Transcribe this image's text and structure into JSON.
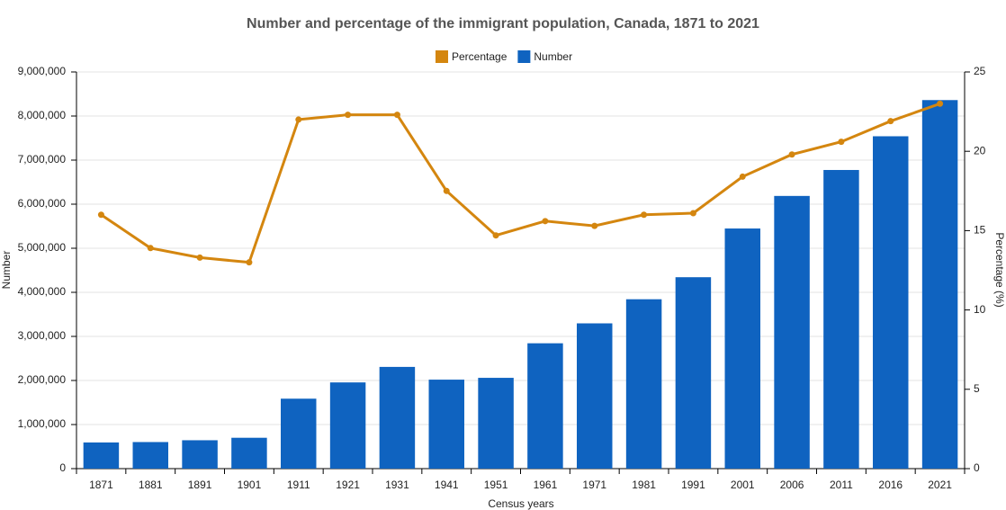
{
  "chart_data": {
    "type": "combo",
    "title": "Number and percentage of the immigrant population, Canada, 1871 to 2021",
    "x_label": "Census years",
    "y_label": "Number",
    "y2_label": "Percentage (%)",
    "categories": [
      "1871",
      "1881",
      "1891",
      "1901",
      "1911",
      "1921",
      "1931",
      "1941",
      "1951",
      "1961",
      "1971",
      "1981",
      "1991",
      "2001",
      "2006",
      "2011",
      "2016",
      "2021"
    ],
    "series": [
      {
        "name": "Percentage",
        "type": "line",
        "axis": "y2",
        "color": "#d4860f",
        "values": [
          16.0,
          13.9,
          13.3,
          13.0,
          22.0,
          22.3,
          22.3,
          17.5,
          14.7,
          15.6,
          15.3,
          16.0,
          16.1,
          18.4,
          19.8,
          20.6,
          21.9,
          23.0
        ]
      },
      {
        "name": "Number",
        "type": "bar",
        "color": "#0f63c0",
        "values": [
          594000,
          603000,
          644000,
          700000,
          1587000,
          1956000,
          2308000,
          2019000,
          2060000,
          2844000,
          3296000,
          3843000,
          4343000,
          5448000,
          6187000,
          6776000,
          7541000,
          8362000
        ]
      }
    ],
    "ylim": [
      0,
      9000000
    ],
    "yticks": [
      0,
      {
        "value": 1000000,
        "label": "1,000,000"
      },
      {
        "value": 2000000,
        "label": "2,000,000"
      },
      {
        "value": 3000000,
        "label": "3,000,000"
      },
      {
        "value": 4000000,
        "label": "4,000,000"
      },
      {
        "value": 5000000,
        "label": "5,000,000"
      },
      {
        "value": 6000000,
        "label": "6,000,000"
      },
      {
        "value": 7000000,
        "label": "7,000,000"
      },
      {
        "value": 8000000,
        "label": "8,000,000"
      },
      {
        "value": 9000000,
        "label": "9,000,000"
      }
    ],
    "y2lim": [
      0,
      25
    ],
    "y2ticks": [
      0,
      5,
      10,
      15,
      20,
      25
    ],
    "grid": true,
    "legend": "top"
  }
}
